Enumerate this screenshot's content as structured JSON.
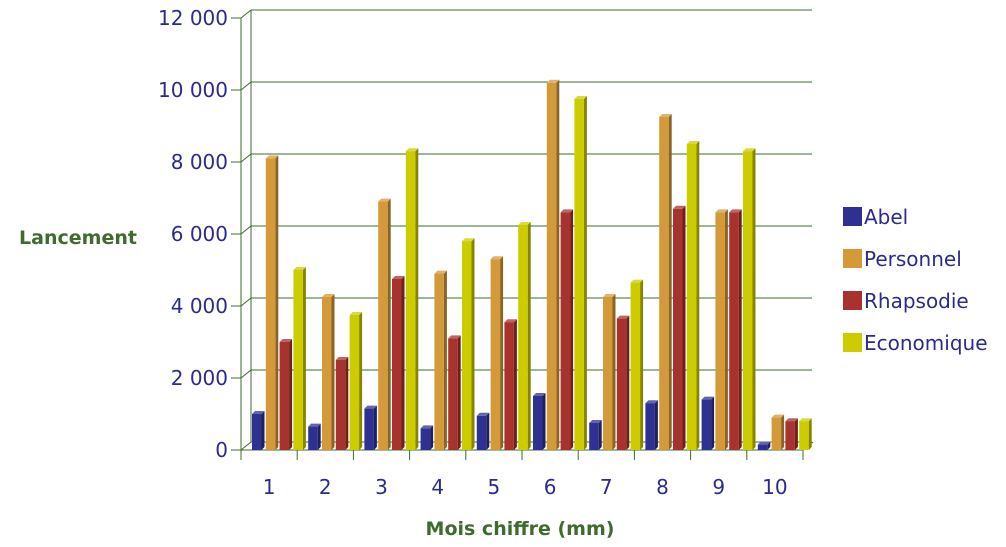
{
  "chart_data": {
    "type": "bar",
    "title": "",
    "xlabel": "Mois chiffre (mm)",
    "ylabel": "Lancement",
    "ylim": [
      0,
      12000
    ],
    "yticks": [
      "0",
      "2 000",
      "4 000",
      "6 000",
      "8 000",
      "10 000",
      "12 000"
    ],
    "ytick_values": [
      0,
      2000,
      4000,
      6000,
      8000,
      10000,
      12000
    ],
    "categories": [
      "1",
      "2",
      "3",
      "4",
      "5",
      "6",
      "7",
      "8",
      "9",
      "10"
    ],
    "grid": true,
    "legend_position": "right",
    "series": [
      {
        "name": "Abel",
        "color": "#2e3192",
        "values": [
          1000,
          650,
          1150,
          600,
          950,
          1500,
          750,
          1300,
          1400,
          150
        ]
      },
      {
        "name": "Personnel",
        "color": "#d49a3a",
        "values": [
          8100,
          4250,
          6900,
          4900,
          5300,
          10200,
          4250,
          9250,
          6600,
          900
        ]
      },
      {
        "name": "Rhapsodie",
        "color": "#a8322d",
        "values": [
          3000,
          2500,
          4750,
          3100,
          3550,
          6600,
          3650,
          6700,
          6600,
          800
        ]
      },
      {
        "name": "Economique",
        "color": "#cccc00",
        "values": [
          5000,
          3750,
          8300,
          5800,
          6250,
          9750,
          4650,
          8500,
          8300,
          800
        ]
      }
    ]
  }
}
